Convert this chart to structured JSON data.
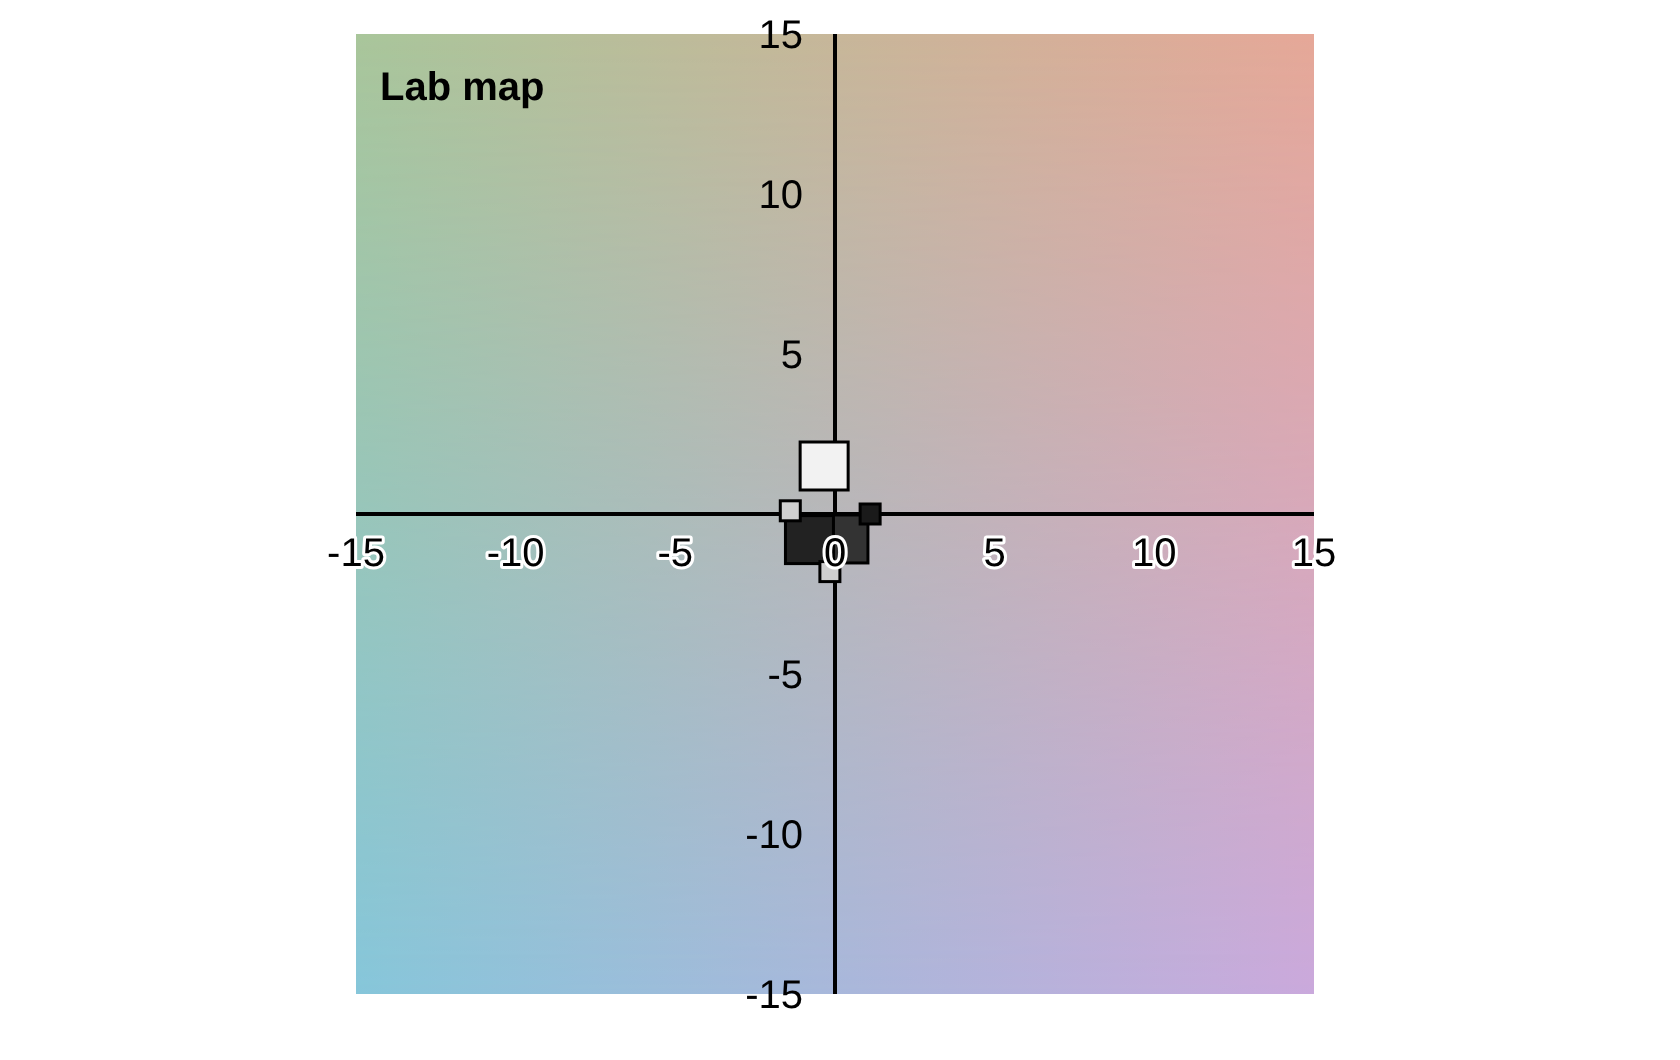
{
  "chart_data": {
    "type": "scatter",
    "title": "Lab map",
    "marker": "square",
    "xlim": [
      -15,
      15
    ],
    "ylim": [
      -15,
      15
    ],
    "xticks": [
      -15,
      -10,
      -5,
      0,
      5,
      10,
      15
    ],
    "yticks": [
      -15,
      -10,
      -5,
      5,
      10,
      15
    ],
    "grid": false,
    "series": [
      {
        "x": [
          -0.34,
          0.28,
          -0.8
        ],
        "values": [
          1.5,
          -0.78,
          -0.8
        ],
        "colors": [
          "#f2f2f2",
          "#333333",
          "#222222"
        ]
      },
      {
        "x": [
          -1.4,
          -0.16,
          1.1
        ],
        "values": [
          0.1,
          -1.8,
          0.0
        ],
        "colors": [
          "#cfcfcf",
          "#cfcfcf",
          "#1a1a1a"
        ]
      }
    ]
  }
}
